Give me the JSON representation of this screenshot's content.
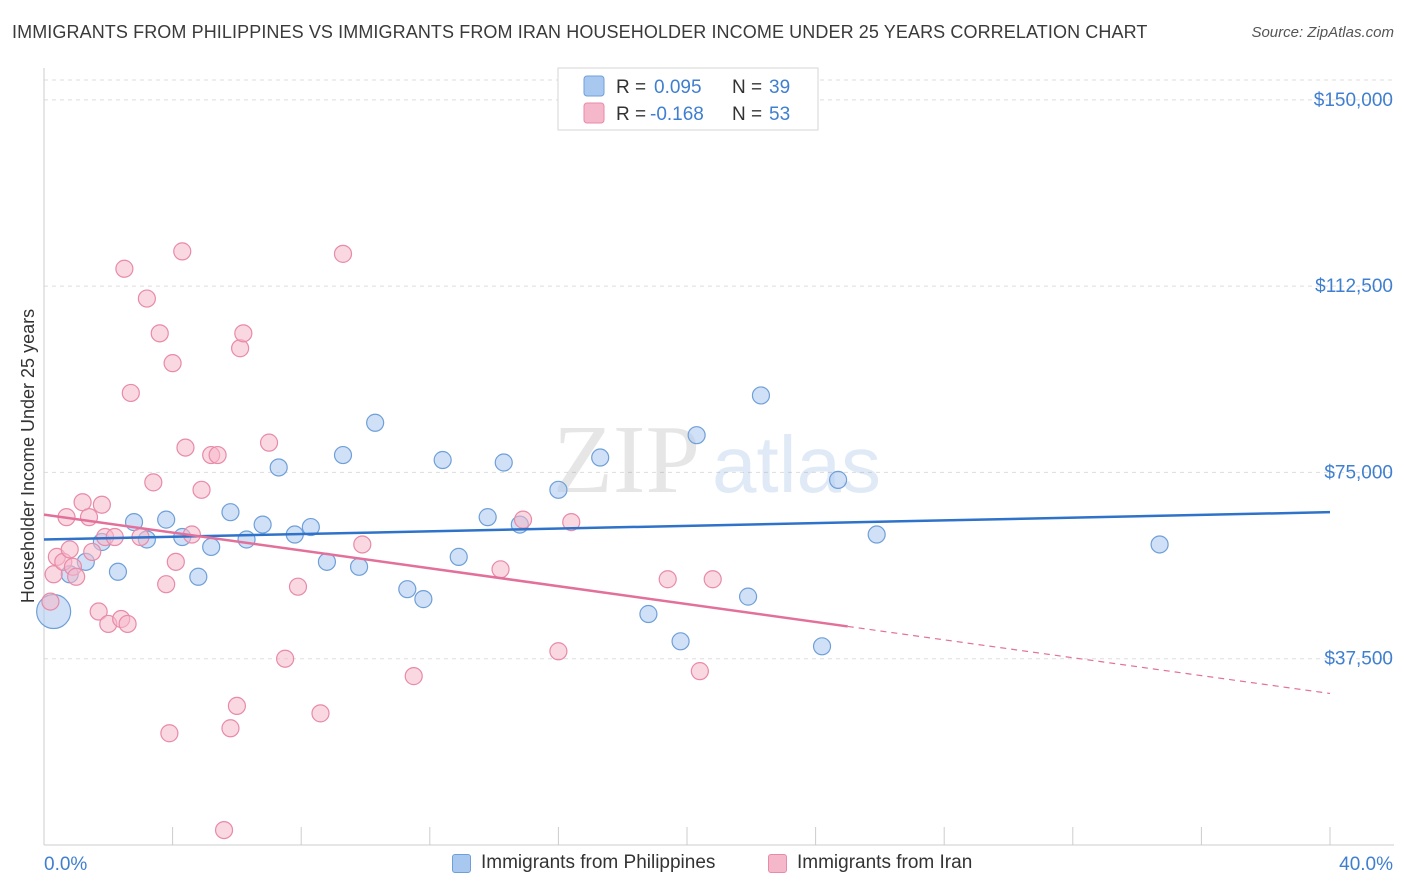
{
  "header": {
    "title": "IMMIGRANTS FROM PHILIPPINES VS IMMIGRANTS FROM IRAN HOUSEHOLDER INCOME UNDER 25 YEARS CORRELATION CHART",
    "source": "Source: ZipAtlas.com"
  },
  "watermark": {
    "zip": "ZIP",
    "atlas": "atlas"
  },
  "stats_legend": {
    "rows": [
      {
        "r_label": "R =",
        "r_value": "0.095",
        "n_label": "N =",
        "n_value": "39"
      },
      {
        "r_label": "R =",
        "r_value": "-0.168",
        "n_label": "N =",
        "n_value": "53"
      }
    ]
  },
  "bottom_legend": {
    "items": [
      {
        "label": "Immigrants from Philippines"
      },
      {
        "label": "Immigrants from Iran"
      }
    ]
  },
  "colors": {
    "philippines_fill": "#a9c8f0",
    "philippines_stroke": "#6f9fd8",
    "philippines_line": "#2f72c9",
    "iran_fill": "#f5b8cb",
    "iran_stroke": "#e88aa8",
    "iran_line": "#e2709a",
    "axis_text": "#3f7fd0",
    "grid": "#dddddd"
  },
  "chart_data": {
    "type": "scatter",
    "ylabel": "Householder Income Under 25 years",
    "xlim": [
      0,
      40
    ],
    "ylim": [
      0,
      154000
    ],
    "x_tick_labels": [
      "0.0%",
      "40.0%"
    ],
    "y_ticks": [
      37500,
      75000,
      112500,
      150000
    ],
    "y_tick_labels": [
      "$37,500",
      "$75,000",
      "$112,500",
      "$150,000"
    ],
    "grid": "horizontal dashed",
    "series": [
      {
        "name": "Immigrants from Philippines",
        "color_key": "philippines",
        "points": [
          [
            0.3,
            47000
          ],
          [
            0.8,
            54500
          ],
          [
            1.3,
            57000
          ],
          [
            1.8,
            61000
          ],
          [
            2.3,
            55000
          ],
          [
            2.8,
            65000
          ],
          [
            3.2,
            61500
          ],
          [
            3.8,
            65500
          ],
          [
            4.3,
            62000
          ],
          [
            4.8,
            54000
          ],
          [
            5.2,
            60000
          ],
          [
            5.8,
            67000
          ],
          [
            6.3,
            61500
          ],
          [
            6.8,
            64500
          ],
          [
            7.3,
            76000
          ],
          [
            7.8,
            62500
          ],
          [
            8.3,
            64000
          ],
          [
            8.8,
            57000
          ],
          [
            9.3,
            78500
          ],
          [
            9.8,
            56000
          ],
          [
            10.3,
            85000
          ],
          [
            11.3,
            51500
          ],
          [
            11.8,
            49500
          ],
          [
            12.4,
            77500
          ],
          [
            12.9,
            58000
          ],
          [
            13.8,
            66000
          ],
          [
            14.3,
            77000
          ],
          [
            14.8,
            64500
          ],
          [
            16.0,
            71500
          ],
          [
            17.3,
            78000
          ],
          [
            18.8,
            46500
          ],
          [
            19.8,
            41000
          ],
          [
            20.3,
            82500
          ],
          [
            21.9,
            50000
          ],
          [
            22.3,
            90500
          ],
          [
            24.2,
            40000
          ],
          [
            24.7,
            73500
          ],
          [
            25.9,
            62500
          ],
          [
            34.7,
            60500
          ]
        ],
        "trend": {
          "x": [
            0,
            40
          ],
          "y": [
            61500,
            67000
          ],
          "r": 0.095,
          "n": 39
        }
      },
      {
        "name": "Immigrants from Iran",
        "color_key": "iran",
        "points": [
          [
            0.2,
            49000
          ],
          [
            0.3,
            54500
          ],
          [
            0.4,
            58000
          ],
          [
            0.6,
            57000
          ],
          [
            0.7,
            66000
          ],
          [
            0.8,
            59500
          ],
          [
            0.9,
            56000
          ],
          [
            1.0,
            54000
          ],
          [
            1.2,
            69000
          ],
          [
            1.4,
            66000
          ],
          [
            1.5,
            59000
          ],
          [
            1.7,
            47000
          ],
          [
            1.8,
            68500
          ],
          [
            1.9,
            62000
          ],
          [
            2.0,
            44500
          ],
          [
            2.2,
            62000
          ],
          [
            2.4,
            45500
          ],
          [
            2.5,
            116000
          ],
          [
            2.6,
            44500
          ],
          [
            2.7,
            91000
          ],
          [
            3.0,
            62000
          ],
          [
            3.2,
            110000
          ],
          [
            3.4,
            73000
          ],
          [
            3.6,
            103000
          ],
          [
            3.8,
            52500
          ],
          [
            3.9,
            22500
          ],
          [
            4.0,
            97000
          ],
          [
            4.1,
            57000
          ],
          [
            4.3,
            119500
          ],
          [
            4.4,
            80000
          ],
          [
            4.6,
            62500
          ],
          [
            4.9,
            71500
          ],
          [
            5.2,
            78500
          ],
          [
            5.4,
            78500
          ],
          [
            5.6,
            3000
          ],
          [
            5.8,
            23500
          ],
          [
            6.0,
            28000
          ],
          [
            6.1,
            100000
          ],
          [
            6.2,
            103000
          ],
          [
            7.0,
            81000
          ],
          [
            7.5,
            37500
          ],
          [
            7.9,
            52000
          ],
          [
            8.6,
            26500
          ],
          [
            9.3,
            119000
          ],
          [
            9.9,
            60500
          ],
          [
            11.5,
            34000
          ],
          [
            14.2,
            55500
          ],
          [
            14.9,
            65500
          ],
          [
            16.0,
            39000
          ],
          [
            16.4,
            65000
          ],
          [
            19.4,
            53500
          ],
          [
            20.4,
            35000
          ],
          [
            20.8,
            53500
          ]
        ],
        "trend": {
          "x": [
            0,
            25
          ],
          "y": [
            66500,
            44000
          ],
          "dashed_extension_x": [
            25,
            40
          ],
          "dashed_extension_y": [
            44000,
            30500
          ],
          "r": -0.168,
          "n": 53
        }
      }
    ],
    "highlight_points": [
      {
        "series": "Immigrants from Philippines",
        "x": 0.3,
        "y": 47000,
        "note_large_marker": true
      }
    ]
  }
}
